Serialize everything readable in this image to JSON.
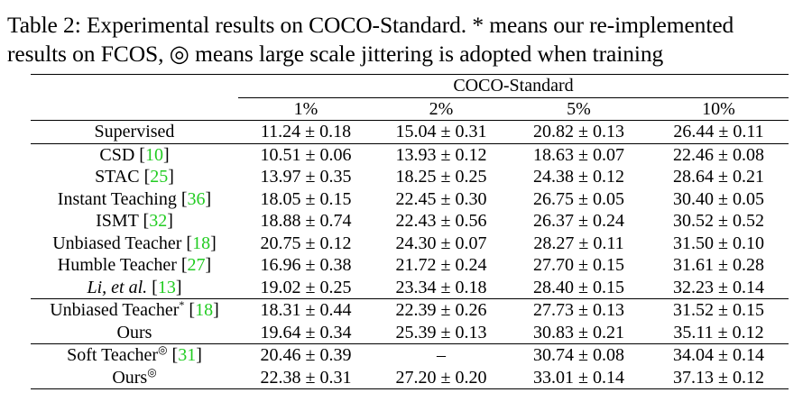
{
  "caption": {
    "line1": "Table 2: Experimental results on COCO-Standard. * means our re-implemented",
    "line2": "results on FCOS, ◎ means large scale jittering is adopted when training"
  },
  "header": {
    "group": "COCO-Standard",
    "columns": [
      "1%",
      "2%",
      "5%",
      "10%"
    ]
  },
  "baseline": {
    "method": "Supervised",
    "values": [
      "11.24 ± 0.18",
      "15.04 ± 0.31",
      "20.82 ± 0.13",
      "26.44 ± 0.11"
    ]
  },
  "group1": [
    {
      "method": "CSD",
      "cite": "10",
      "values": [
        "10.51 ± 0.06",
        "13.93 ± 0.12",
        "18.63 ± 0.07",
        "22.46 ± 0.08"
      ]
    },
    {
      "method": "STAC",
      "cite": "25",
      "values": [
        "13.97 ± 0.35",
        "18.25 ± 0.25",
        "24.38 ± 0.12",
        "28.64 ± 0.21"
      ]
    },
    {
      "method": "Instant Teaching",
      "cite": "36",
      "values": [
        "18.05 ± 0.15",
        "22.45 ± 0.30",
        "26.75 ± 0.05",
        "30.40 ± 0.05"
      ]
    },
    {
      "method": "ISMT",
      "cite": "32",
      "values": [
        "18.88 ± 0.74",
        "22.43 ± 0.56",
        "26.37 ± 0.24",
        "30.52 ± 0.52"
      ]
    },
    {
      "method": "Unbiased Teacher",
      "cite": "18",
      "values": [
        "20.75 ± 0.12",
        "24.30 ± 0.07",
        "28.27 ± 0.11",
        "31.50 ± 0.10"
      ]
    },
    {
      "method": "Humble Teacher",
      "cite": "27",
      "values": [
        "16.96 ± 0.38",
        "21.72 ± 0.24",
        "27.70 ± 0.15",
        "31.61 ± 0.28"
      ]
    },
    {
      "method": "Li, et al.",
      "cite": "13",
      "values": [
        "19.02 ± 0.25",
        "23.34 ± 0.18",
        "28.40 ± 0.15",
        "32.23 ± 0.14"
      ]
    }
  ],
  "group2": [
    {
      "method": "Unbiased Teacher",
      "sup": "*",
      "cite": "18",
      "values": [
        "18.31 ± 0.44",
        "22.39 ± 0.26",
        "27.73 ± 0.13",
        "31.52 ± 0.15"
      ]
    },
    {
      "method": "Ours",
      "values": [
        "19.64 ± 0.34",
        "25.39 ± 0.13",
        "30.83 ± 0.21",
        "35.11 ± 0.12"
      ]
    }
  ],
  "group3": [
    {
      "method": "Soft Teacher",
      "sup": "◎",
      "cite": "31",
      "values": [
        "20.46 ± 0.39",
        "–",
        "30.74 ± 0.08",
        "34.04 ± 0.14"
      ]
    },
    {
      "method": "Ours",
      "sup": "◎",
      "values": [
        "22.38 ± 0.31",
        "27.20 ± 0.20",
        "33.01 ± 0.14",
        "37.13 ± 0.12"
      ]
    }
  ]
}
